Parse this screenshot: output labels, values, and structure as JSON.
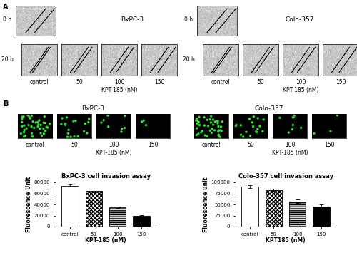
{
  "figure": {
    "panel_a": {
      "label": "A",
      "time_labels": [
        "0 h",
        "20 h"
      ],
      "cell_lines": [
        "BxPC-3",
        "Colo-357"
      ],
      "conditions": [
        "control",
        "50",
        "100",
        "150"
      ],
      "treatment": "KPT-185 (nM)"
    },
    "panel_b": {
      "label": "B",
      "cell_lines": [
        "BxPC-3",
        "Colo-357"
      ],
      "conditions": [
        "control",
        "50",
        "100",
        "150"
      ],
      "treatment": "KPT-185 (nM)"
    }
  },
  "chart_data": [
    {
      "type": "bar",
      "title": "BxPC-3 cell invasion assay",
      "x_label": "KPT-185 (nM)",
      "y_label": "Fluorescence Unit",
      "categories": [
        "control",
        "50",
        "100",
        "150"
      ],
      "values": [
        74000,
        65000,
        35000,
        20000
      ],
      "errors": [
        2000,
        3000,
        1000,
        1000
      ],
      "colors": [
        "#ffffff",
        "#ffffff",
        "#d9d9d9",
        "#000000"
      ],
      "ylim": [
        0,
        80000
      ],
      "yticks": [
        0,
        20000,
        40000,
        60000,
        80000
      ]
    },
    {
      "type": "bar",
      "title": "Colo-357 cell invasion assay",
      "x_label": "KPT185 (nM)",
      "y_label": "Fluorescence unit",
      "categories": [
        "control",
        "50",
        "100",
        "150"
      ],
      "values": [
        90000,
        82000,
        57000,
        45000
      ],
      "errors": [
        3000,
        3000,
        4000,
        5000
      ],
      "colors": [
        "#ffffff",
        "#ffffff",
        "#d9d9d9",
        "#000000"
      ],
      "ylim": [
        0,
        100000
      ],
      "yticks": [
        0,
        25000,
        50000,
        75000,
        100000
      ]
    }
  ]
}
